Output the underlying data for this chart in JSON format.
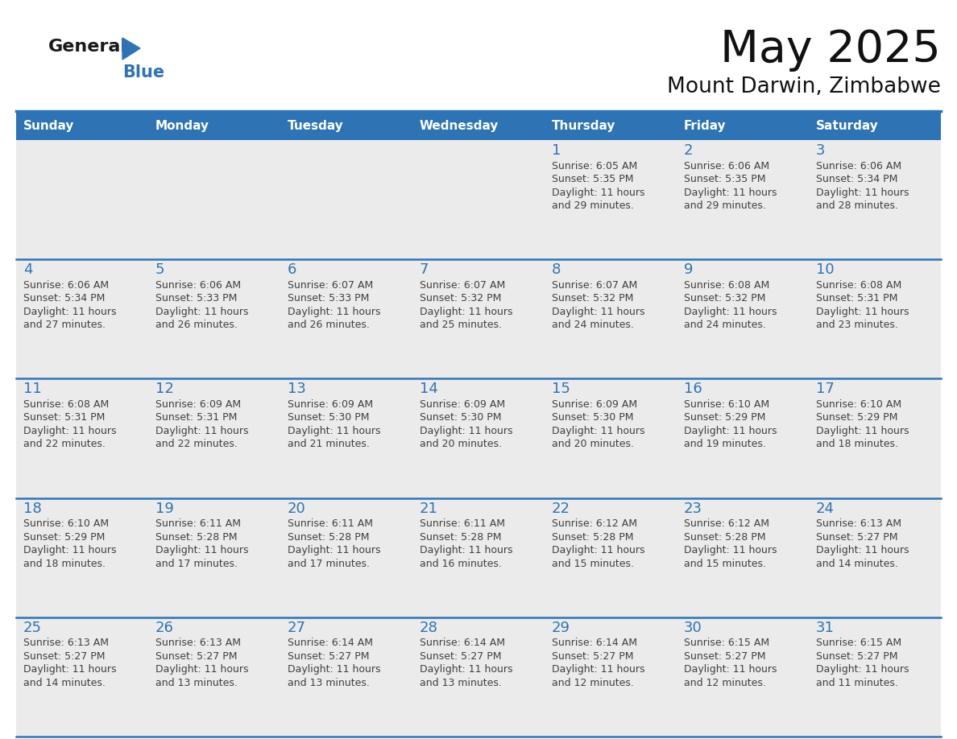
{
  "title": "May 2025",
  "subtitle": "Mount Darwin, Zimbabwe",
  "header_bg": "#2E74B5",
  "header_text_color": "#FFFFFF",
  "cell_bg": "#EBEBEB",
  "grid_line_color": "#2E74B5",
  "day_number_color": "#2E74B5",
  "cell_text_color": "#404040",
  "days_of_week": [
    "Sunday",
    "Monday",
    "Tuesday",
    "Wednesday",
    "Thursday",
    "Friday",
    "Saturday"
  ],
  "calendar": [
    [
      {
        "day": "",
        "sunrise": "",
        "sunset": "",
        "daylight_hrs": "",
        "daylight_min": ""
      },
      {
        "day": "",
        "sunrise": "",
        "sunset": "",
        "daylight_hrs": "",
        "daylight_min": ""
      },
      {
        "day": "",
        "sunrise": "",
        "sunset": "",
        "daylight_hrs": "",
        "daylight_min": ""
      },
      {
        "day": "",
        "sunrise": "",
        "sunset": "",
        "daylight_hrs": "",
        "daylight_min": ""
      },
      {
        "day": "1",
        "sunrise": "6:05 AM",
        "sunset": "5:35 PM",
        "daylight_hrs": "11 hours",
        "daylight_min": "29 minutes"
      },
      {
        "day": "2",
        "sunrise": "6:06 AM",
        "sunset": "5:35 PM",
        "daylight_hrs": "11 hours",
        "daylight_min": "29 minutes"
      },
      {
        "day": "3",
        "sunrise": "6:06 AM",
        "sunset": "5:34 PM",
        "daylight_hrs": "11 hours",
        "daylight_min": "28 minutes"
      }
    ],
    [
      {
        "day": "4",
        "sunrise": "6:06 AM",
        "sunset": "5:34 PM",
        "daylight_hrs": "11 hours",
        "daylight_min": "27 minutes"
      },
      {
        "day": "5",
        "sunrise": "6:06 AM",
        "sunset": "5:33 PM",
        "daylight_hrs": "11 hours",
        "daylight_min": "26 minutes"
      },
      {
        "day": "6",
        "sunrise": "6:07 AM",
        "sunset": "5:33 PM",
        "daylight_hrs": "11 hours",
        "daylight_min": "26 minutes"
      },
      {
        "day": "7",
        "sunrise": "6:07 AM",
        "sunset": "5:32 PM",
        "daylight_hrs": "11 hours",
        "daylight_min": "25 minutes"
      },
      {
        "day": "8",
        "sunrise": "6:07 AM",
        "sunset": "5:32 PM",
        "daylight_hrs": "11 hours",
        "daylight_min": "24 minutes"
      },
      {
        "day": "9",
        "sunrise": "6:08 AM",
        "sunset": "5:32 PM",
        "daylight_hrs": "11 hours",
        "daylight_min": "24 minutes"
      },
      {
        "day": "10",
        "sunrise": "6:08 AM",
        "sunset": "5:31 PM",
        "daylight_hrs": "11 hours",
        "daylight_min": "23 minutes"
      }
    ],
    [
      {
        "day": "11",
        "sunrise": "6:08 AM",
        "sunset": "5:31 PM",
        "daylight_hrs": "11 hours",
        "daylight_min": "22 minutes"
      },
      {
        "day": "12",
        "sunrise": "6:09 AM",
        "sunset": "5:31 PM",
        "daylight_hrs": "11 hours",
        "daylight_min": "22 minutes"
      },
      {
        "day": "13",
        "sunrise": "6:09 AM",
        "sunset": "5:30 PM",
        "daylight_hrs": "11 hours",
        "daylight_min": "21 minutes"
      },
      {
        "day": "14",
        "sunrise": "6:09 AM",
        "sunset": "5:30 PM",
        "daylight_hrs": "11 hours",
        "daylight_min": "20 minutes"
      },
      {
        "day": "15",
        "sunrise": "6:09 AM",
        "sunset": "5:30 PM",
        "daylight_hrs": "11 hours",
        "daylight_min": "20 minutes"
      },
      {
        "day": "16",
        "sunrise": "6:10 AM",
        "sunset": "5:29 PM",
        "daylight_hrs": "11 hours",
        "daylight_min": "19 minutes"
      },
      {
        "day": "17",
        "sunrise": "6:10 AM",
        "sunset": "5:29 PM",
        "daylight_hrs": "11 hours",
        "daylight_min": "18 minutes"
      }
    ],
    [
      {
        "day": "18",
        "sunrise": "6:10 AM",
        "sunset": "5:29 PM",
        "daylight_hrs": "11 hours",
        "daylight_min": "18 minutes"
      },
      {
        "day": "19",
        "sunrise": "6:11 AM",
        "sunset": "5:28 PM",
        "daylight_hrs": "11 hours",
        "daylight_min": "17 minutes"
      },
      {
        "day": "20",
        "sunrise": "6:11 AM",
        "sunset": "5:28 PM",
        "daylight_hrs": "11 hours",
        "daylight_min": "17 minutes"
      },
      {
        "day": "21",
        "sunrise": "6:11 AM",
        "sunset": "5:28 PM",
        "daylight_hrs": "11 hours",
        "daylight_min": "16 minutes"
      },
      {
        "day": "22",
        "sunrise": "6:12 AM",
        "sunset": "5:28 PM",
        "daylight_hrs": "11 hours",
        "daylight_min": "15 minutes"
      },
      {
        "day": "23",
        "sunrise": "6:12 AM",
        "sunset": "5:28 PM",
        "daylight_hrs": "11 hours",
        "daylight_min": "15 minutes"
      },
      {
        "day": "24",
        "sunrise": "6:13 AM",
        "sunset": "5:27 PM",
        "daylight_hrs": "11 hours",
        "daylight_min": "14 minutes"
      }
    ],
    [
      {
        "day": "25",
        "sunrise": "6:13 AM",
        "sunset": "5:27 PM",
        "daylight_hrs": "11 hours",
        "daylight_min": "14 minutes"
      },
      {
        "day": "26",
        "sunrise": "6:13 AM",
        "sunset": "5:27 PM",
        "daylight_hrs": "11 hours",
        "daylight_min": "13 minutes"
      },
      {
        "day": "27",
        "sunrise": "6:14 AM",
        "sunset": "5:27 PM",
        "daylight_hrs": "11 hours",
        "daylight_min": "13 minutes"
      },
      {
        "day": "28",
        "sunrise": "6:14 AM",
        "sunset": "5:27 PM",
        "daylight_hrs": "11 hours",
        "daylight_min": "13 minutes"
      },
      {
        "day": "29",
        "sunrise": "6:14 AM",
        "sunset": "5:27 PM",
        "daylight_hrs": "11 hours",
        "daylight_min": "12 minutes"
      },
      {
        "day": "30",
        "sunrise": "6:15 AM",
        "sunset": "5:27 PM",
        "daylight_hrs": "11 hours",
        "daylight_min": "12 minutes"
      },
      {
        "day": "31",
        "sunrise": "6:15 AM",
        "sunset": "5:27 PM",
        "daylight_hrs": "11 hours",
        "daylight_min": "11 minutes"
      }
    ]
  ]
}
